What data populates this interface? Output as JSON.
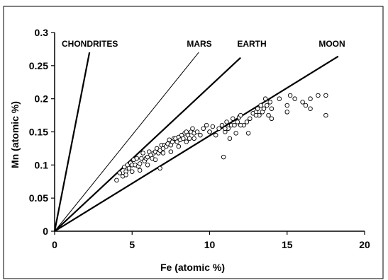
{
  "chart_data": {
    "type": "scatter",
    "title": "",
    "xlabel": "Fe  (atomic %)",
    "ylabel": "Mn  (atomic %)",
    "xlim": [
      0,
      20
    ],
    "ylim": [
      0,
      0.3
    ],
    "xticks": [
      0,
      5,
      10,
      15,
      20
    ],
    "yticks": [
      0,
      0.05,
      0.1,
      0.15,
      0.2,
      0.25,
      0.3
    ],
    "xtick_labels": [
      "0",
      "5",
      "10",
      "15",
      "20"
    ],
    "ytick_labels": [
      "0",
      "0.05",
      "0.1",
      "0.15",
      "0.2",
      "0.25",
      "0.3"
    ],
    "grid": false,
    "legend": "none",
    "lines": [
      {
        "label": "CHONDRITES",
        "x": [
          0,
          2.25
        ],
        "y": [
          0,
          0.27
        ],
        "weight": "heavy"
      },
      {
        "label": "MARS",
        "x": [
          0,
          9.3
        ],
        "y": [
          0,
          0.27
        ],
        "weight": "thin"
      },
      {
        "label": "EARTH",
        "x": [
          0,
          12.0
        ],
        "y": [
          0,
          0.262
        ],
        "weight": "heavy"
      },
      {
        "label": "MOON",
        "x": [
          0,
          18.3
        ],
        "y": [
          0,
          0.264
        ],
        "weight": "heavy"
      }
    ],
    "points": {
      "x": [
        4.0,
        4.2,
        4.4,
        4.5,
        4.6,
        4.7,
        4.8,
        4.9,
        5.0,
        5.1,
        5.2,
        5.3,
        5.4,
        5.5,
        5.6,
        5.7,
        5.8,
        5.9,
        6.0,
        6.1,
        6.2,
        6.3,
        6.4,
        6.5,
        6.6,
        6.7,
        6.8,
        6.9,
        7.0,
        7.1,
        7.2,
        7.3,
        7.4,
        7.5,
        7.6,
        7.7,
        7.8,
        7.9,
        8.0,
        8.1,
        8.2,
        8.3,
        8.4,
        8.5,
        8.6,
        8.7,
        8.8,
        8.9,
        9.0,
        9.2,
        9.4,
        9.6,
        9.8,
        10.0,
        10.2,
        10.4,
        10.6,
        10.8,
        11.0,
        11.1,
        11.2,
        11.3,
        11.4,
        11.5,
        11.6,
        11.7,
        11.8,
        11.9,
        12.0,
        12.2,
        12.4,
        12.6,
        12.8,
        13.0,
        13.1,
        13.2,
        13.3,
        13.4,
        13.5,
        13.6,
        13.7,
        13.8,
        13.9,
        14.0,
        14.5,
        15.0,
        15.2,
        15.5,
        16.0,
        16.2,
        16.5,
        17.0,
        17.5,
        17.5,
        5.0,
        5.5,
        6.0,
        6.5,
        7.0,
        7.5,
        8.0,
        8.5,
        9.0,
        10.0,
        11.0,
        12.0,
        13.0,
        14.0,
        15.0,
        16.5,
        4.6,
        6.8,
        10.9,
        12.5
      ],
      "y": [
        0.077,
        0.088,
        0.083,
        0.097,
        0.09,
        0.1,
        0.095,
        0.103,
        0.1,
        0.108,
        0.1,
        0.11,
        0.098,
        0.102,
        0.11,
        0.118,
        0.106,
        0.11,
        0.112,
        0.12,
        0.115,
        0.11,
        0.118,
        0.12,
        0.125,
        0.118,
        0.122,
        0.13,
        0.125,
        0.13,
        0.128,
        0.132,
        0.138,
        0.13,
        0.135,
        0.14,
        0.14,
        0.135,
        0.142,
        0.138,
        0.145,
        0.14,
        0.148,
        0.15,
        0.145,
        0.14,
        0.15,
        0.155,
        0.148,
        0.15,
        0.145,
        0.155,
        0.16,
        0.15,
        0.158,
        0.145,
        0.155,
        0.16,
        0.15,
        0.165,
        0.155,
        0.14,
        0.16,
        0.17,
        0.16,
        0.148,
        0.165,
        0.172,
        0.175,
        0.16,
        0.165,
        0.17,
        0.178,
        0.18,
        0.185,
        0.175,
        0.19,
        0.18,
        0.185,
        0.2,
        0.19,
        0.175,
        0.195,
        0.185,
        0.2,
        0.19,
        0.205,
        0.2,
        0.195,
        0.19,
        0.2,
        0.205,
        0.205,
        0.175,
        0.09,
        0.092,
        0.1,
        0.108,
        0.118,
        0.12,
        0.128,
        0.135,
        0.14,
        0.15,
        0.155,
        0.16,
        0.175,
        0.17,
        0.18,
        0.185,
        0.085,
        0.095,
        0.112,
        0.148
      ]
    }
  }
}
